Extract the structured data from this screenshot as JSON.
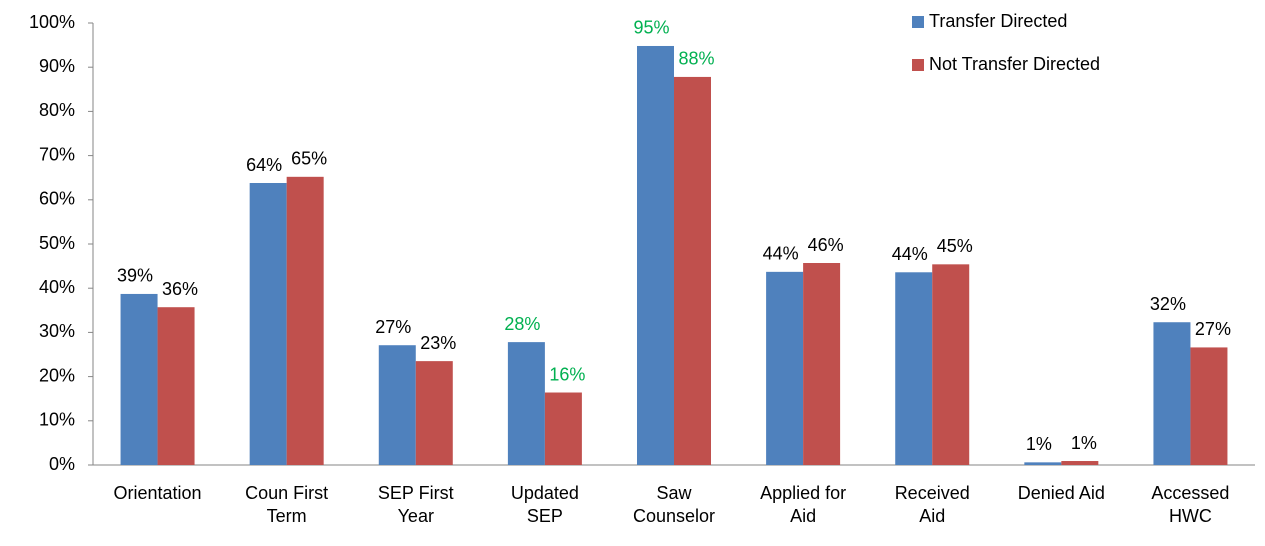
{
  "chart_data": {
    "type": "grouped_bar",
    "categories": [
      "Orientation",
      "Coun First Term",
      "SEP First Year",
      "Updated SEP",
      "Saw Counselor",
      "Applied for Aid",
      "Received Aid",
      "Denied Aid",
      "Accessed HWC"
    ],
    "series": [
      {
        "name": "Transfer Directed",
        "color": "#4f81bd",
        "values": [
          38.7,
          63.8,
          27.1,
          27.8,
          94.8,
          43.7,
          43.6,
          0.6,
          32.3
        ],
        "value_labels": [
          "39%",
          "64%",
          "27%",
          "28%",
          "95%",
          "44%",
          "44%",
          "1%",
          "32%"
        ],
        "label_colors": [
          "#000000",
          "#000000",
          "#000000",
          "#00b050",
          "#00b050",
          "#000000",
          "#000000",
          "#000000",
          "#000000"
        ]
      },
      {
        "name": "Not Transfer Directed",
        "color": "#c0504d",
        "values": [
          35.7,
          65.2,
          23.5,
          16.4,
          87.8,
          45.7,
          45.4,
          0.9,
          26.6
        ],
        "value_labels": [
          "36%",
          "65%",
          "23%",
          "16%",
          "88%",
          "46%",
          "45%",
          "1%",
          "27%"
        ],
        "label_colors": [
          "#000000",
          "#000000",
          "#000000",
          "#00b050",
          "#00b050",
          "#000000",
          "#000000",
          "#000000",
          "#000000"
        ]
      }
    ],
    "ylim": [
      0,
      100
    ],
    "yticks": [
      {
        "value": 0,
        "label": "0%"
      },
      {
        "value": 10,
        "label": "10%"
      },
      {
        "value": 20,
        "label": "20%"
      },
      {
        "value": 30,
        "label": "30%"
      },
      {
        "value": 40,
        "label": "40%"
      },
      {
        "value": 50,
        "label": "50%"
      },
      {
        "value": 60,
        "label": "60%"
      },
      {
        "value": 70,
        "label": "70%"
      },
      {
        "value": 80,
        "label": "80%"
      },
      {
        "value": 90,
        "label": "90%"
      },
      {
        "value": 100,
        "label": "100%"
      }
    ],
    "grid": false,
    "legend": "top-right"
  }
}
